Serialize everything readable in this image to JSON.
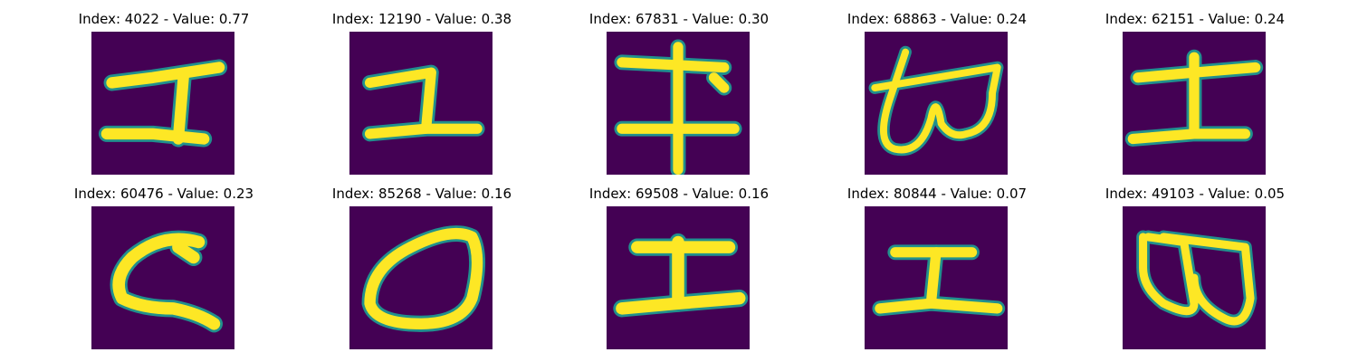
{
  "colors": {
    "background": "#440154",
    "stroke_mid": "#21908d",
    "stroke_bright": "#fde725",
    "stroke_edge": "#3b528b"
  },
  "panels": [
    {
      "title": "Index: 4022 - Value: 0.77",
      "glyph": "I-shape"
    },
    {
      "title": "Index: 12190 - Value: 0.38",
      "glyph": "reverse-L"
    },
    {
      "title": "Index: 67831 - Value: 0.30",
      "glyph": "double-cross"
    },
    {
      "title": "Index: 68863 - Value: 0.24",
      "glyph": "scribble-loops"
    },
    {
      "title": "Index: 62151 - Value: 0.24",
      "glyph": "I-shape"
    },
    {
      "title": "Index: 60476 - Value: 0.23",
      "glyph": "C-shape"
    },
    {
      "title": "Index: 85268 - Value: 0.16",
      "glyph": "oval"
    },
    {
      "title": "Index: 69508 - Value: 0.16",
      "glyph": "I-shape"
    },
    {
      "title": "Index: 80844 - Value: 0.07",
      "glyph": "I-shape"
    },
    {
      "title": "Index: 49103 - Value: 0.05",
      "glyph": "double-loop"
    }
  ]
}
